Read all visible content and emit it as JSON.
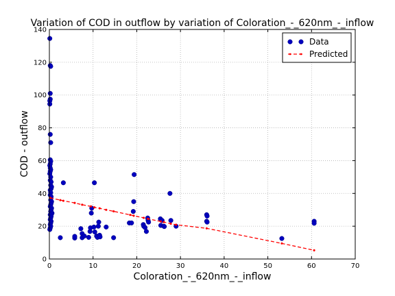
{
  "chart_data": {
    "type": "scatter",
    "title": "Variation of COD in outflow by variation of Coloration_-_620nm_-_inflow",
    "xlabel": "Coloration_-_620nm_-_inflow",
    "ylabel": "COD - outflow",
    "xlim": [
      0,
      70
    ],
    "ylim": [
      0,
      140
    ],
    "xticks": [
      0,
      10,
      20,
      30,
      40,
      50,
      60,
      70
    ],
    "yticks": [
      0,
      20,
      40,
      60,
      80,
      100,
      120,
      140
    ],
    "grid": true,
    "legend_position": "top-right",
    "colors": {
      "data": "#0000bf",
      "predicted": "#ff0000"
    },
    "series": [
      {
        "name": "Data",
        "style": "markers",
        "points": [
          [
            0.1,
            134.5
          ],
          [
            0.2,
            118
          ],
          [
            0.3,
            117.5
          ],
          [
            0.2,
            101
          ],
          [
            0.2,
            97.5
          ],
          [
            0.1,
            96.5
          ],
          [
            0.1,
            94.5
          ],
          [
            0.2,
            76
          ],
          [
            0.3,
            71
          ],
          [
            0.2,
            60.5
          ],
          [
            0.3,
            59.5
          ],
          [
            0.2,
            58
          ],
          [
            0.1,
            57
          ],
          [
            0.2,
            55.5
          ],
          [
            0.3,
            54.5
          ],
          [
            0.2,
            53.5
          ],
          [
            0.1,
            52
          ],
          [
            0.3,
            50
          ],
          [
            0.2,
            48
          ],
          [
            0.4,
            47
          ],
          [
            0.3,
            45
          ],
          [
            0.5,
            44
          ],
          [
            0.4,
            43
          ],
          [
            0.2,
            42
          ],
          [
            0.3,
            40.5
          ],
          [
            0.2,
            39
          ],
          [
            0.4,
            38
          ],
          [
            0.3,
            36
          ],
          [
            0.5,
            35
          ],
          [
            0.4,
            34
          ],
          [
            0.3,
            33
          ],
          [
            0.2,
            32
          ],
          [
            0.5,
            31
          ],
          [
            0.4,
            30
          ],
          [
            0.3,
            29
          ],
          [
            0.6,
            28
          ],
          [
            0.5,
            27.5
          ],
          [
            0.2,
            27
          ],
          [
            0.4,
            26
          ],
          [
            0.3,
            25
          ],
          [
            0.2,
            24
          ],
          [
            0.4,
            23
          ],
          [
            0.3,
            22
          ],
          [
            0.2,
            21
          ],
          [
            0.3,
            20
          ],
          [
            0.2,
            19
          ],
          [
            0.1,
            18
          ],
          [
            2.5,
            13
          ],
          [
            3.2,
            46.5
          ],
          [
            5.8,
            12.8
          ],
          [
            5.8,
            13.8
          ],
          [
            7.2,
            18.5
          ],
          [
            7.5,
            15.5
          ],
          [
            7.5,
            13
          ],
          [
            8,
            14
          ],
          [
            9,
            13.2
          ],
          [
            9.3,
            16.8
          ],
          [
            9.4,
            19
          ],
          [
            9.6,
            28
          ],
          [
            9.7,
            31
          ],
          [
            10.2,
            19.5
          ],
          [
            10.3,
            46.5
          ],
          [
            10.4,
            16.5
          ],
          [
            10.8,
            14
          ],
          [
            11,
            13.2
          ],
          [
            11.2,
            20
          ],
          [
            11.3,
            22.5
          ],
          [
            11.5,
            14.5
          ],
          [
            11.6,
            13.5
          ],
          [
            13,
            19.5
          ],
          [
            14.7,
            13
          ],
          [
            18.3,
            22
          ],
          [
            18.8,
            22
          ],
          [
            19.2,
            29
          ],
          [
            19.3,
            35
          ],
          [
            19.4,
            51.5
          ],
          [
            21.5,
            21
          ],
          [
            21.6,
            20
          ],
          [
            21.9,
            19.2
          ],
          [
            22.2,
            16.8
          ],
          [
            22.5,
            25
          ],
          [
            22.6,
            23.5
          ],
          [
            22.7,
            22.5
          ],
          [
            25.4,
            24.5
          ],
          [
            25.5,
            20.5
          ],
          [
            25.8,
            23.5
          ],
          [
            26.2,
            20
          ],
          [
            26.3,
            19.8
          ],
          [
            27.6,
            40
          ],
          [
            27.8,
            23.5
          ],
          [
            29,
            20
          ],
          [
            36,
            27
          ],
          [
            36.1,
            26.2
          ],
          [
            36,
            23
          ],
          [
            36.1,
            22.5
          ],
          [
            53.2,
            12.5
          ],
          [
            60.6,
            23
          ],
          [
            60.6,
            21.8
          ]
        ]
      },
      {
        "name": "Predicted",
        "style": "dashed-line-with-dots",
        "points": [
          [
            0.2,
            37.3
          ],
          [
            2.5,
            35.9
          ],
          [
            3.2,
            35.5
          ],
          [
            5.8,
            34.2
          ],
          [
            7.5,
            33.1
          ],
          [
            9.5,
            32.1
          ],
          [
            10.3,
            31.5
          ],
          [
            11.5,
            30.9
          ],
          [
            13,
            30
          ],
          [
            14.7,
            29.1
          ],
          [
            18.5,
            26.9
          ],
          [
            19.3,
            26.4
          ],
          [
            21.6,
            25.1
          ],
          [
            22.6,
            24.5
          ],
          [
            25.5,
            22.9
          ],
          [
            26.2,
            22.5
          ],
          [
            27.8,
            21.5
          ],
          [
            29,
            20.9
          ],
          [
            36,
            18.7
          ],
          [
            53.2,
            9.5
          ],
          [
            60.6,
            5.3
          ]
        ]
      }
    ]
  }
}
